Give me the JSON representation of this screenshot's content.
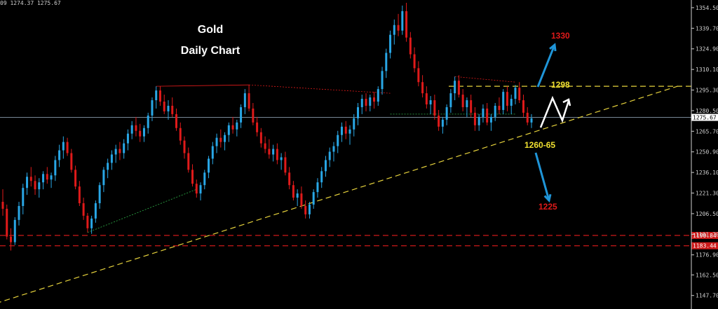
{
  "ohlc_header": "09 1274.37 1275.67",
  "chart_data": {
    "type": "candlestick",
    "title": "Gold",
    "subtitle": "Daily Chart",
    "y_ticks": [
      1354.5,
      1339.7,
      1324.9,
      1310.1,
      1295.3,
      1280.5,
      1265.7,
      1250.9,
      1236.1,
      1221.3,
      1206.5,
      1191.7,
      1176.9,
      1162.5,
      1147.7
    ],
    "ylim": [
      1138,
      1360
    ],
    "current_price": 1275.67,
    "horizontal_levels": [
      1190.84,
      1183.44
    ],
    "resistance_level": 1298,
    "targets": {
      "up_label": "1330",
      "resistance_label": "1298",
      "support_label": "1260-65",
      "down_label": "1225"
    },
    "colors": {
      "up": "#29a7e6",
      "down": "#e01a1a",
      "trend": "#e6d23c",
      "levels": "#cc1a1a",
      "grid_text": "#cfcfcf"
    },
    "candles": [
      [
        1215,
        1224,
        1205,
        1210
      ],
      [
        1210,
        1213,
        1188,
        1190
      ],
      [
        1190,
        1196,
        1180,
        1186
      ],
      [
        1186,
        1204,
        1184,
        1202
      ],
      [
        1202,
        1215,
        1198,
        1212
      ],
      [
        1212,
        1228,
        1206,
        1225
      ],
      [
        1225,
        1236,
        1220,
        1233
      ],
      [
        1233,
        1240,
        1226,
        1230
      ],
      [
        1230,
        1234,
        1220,
        1224
      ],
      [
        1224,
        1232,
        1218,
        1229
      ],
      [
        1229,
        1237,
        1224,
        1235
      ],
      [
        1235,
        1240,
        1228,
        1231
      ],
      [
        1231,
        1236,
        1225,
        1234
      ],
      [
        1234,
        1248,
        1230,
        1245
      ],
      [
        1245,
        1256,
        1240,
        1252
      ],
      [
        1252,
        1262,
        1246,
        1258
      ],
      [
        1258,
        1261,
        1248,
        1250
      ],
      [
        1250,
        1253,
        1236,
        1238
      ],
      [
        1238,
        1241,
        1224,
        1226
      ],
      [
        1226,
        1230,
        1212,
        1214
      ],
      [
        1214,
        1218,
        1202,
        1205
      ],
      [
        1205,
        1207,
        1193,
        1196
      ],
      [
        1196,
        1205,
        1192,
        1203
      ],
      [
        1203,
        1216,
        1200,
        1214
      ],
      [
        1214,
        1229,
        1210,
        1227
      ],
      [
        1227,
        1240,
        1222,
        1238
      ],
      [
        1238,
        1246,
        1232,
        1243
      ],
      [
        1243,
        1252,
        1238,
        1249
      ],
      [
        1249,
        1256,
        1243,
        1253
      ],
      [
        1253,
        1258,
        1245,
        1250
      ],
      [
        1250,
        1260,
        1246,
        1257
      ],
      [
        1257,
        1267,
        1252,
        1264
      ],
      [
        1264,
        1273,
        1260,
        1270
      ],
      [
        1270,
        1276,
        1262,
        1266
      ],
      [
        1266,
        1271,
        1258,
        1262
      ],
      [
        1262,
        1270,
        1258,
        1268
      ],
      [
        1268,
        1279,
        1264,
        1277
      ],
      [
        1277,
        1290,
        1273,
        1288
      ],
      [
        1288,
        1298,
        1282,
        1295
      ],
      [
        1295,
        1298,
        1284,
        1287
      ],
      [
        1287,
        1292,
        1278,
        1280
      ],
      [
        1280,
        1288,
        1274,
        1284
      ],
      [
        1284,
        1290,
        1276,
        1278
      ],
      [
        1278,
        1282,
        1266,
        1268
      ],
      [
        1268,
        1272,
        1256,
        1259
      ],
      [
        1259,
        1262,
        1246,
        1250
      ],
      [
        1250,
        1254,
        1236,
        1238
      ],
      [
        1238,
        1242,
        1226,
        1228
      ],
      [
        1228,
        1231,
        1218,
        1221
      ],
      [
        1221,
        1229,
        1216,
        1227
      ],
      [
        1227,
        1238,
        1224,
        1236
      ],
      [
        1236,
        1248,
        1232,
        1246
      ],
      [
        1246,
        1258,
        1242,
        1255
      ],
      [
        1255,
        1264,
        1250,
        1261
      ],
      [
        1261,
        1267,
        1254,
        1258
      ],
      [
        1258,
        1265,
        1252,
        1263
      ],
      [
        1263,
        1272,
        1258,
        1270
      ],
      [
        1270,
        1276,
        1264,
        1267
      ],
      [
        1267,
        1274,
        1262,
        1272
      ],
      [
        1272,
        1285,
        1268,
        1283
      ],
      [
        1283,
        1296,
        1278,
        1293
      ],
      [
        1293,
        1299,
        1280,
        1282
      ],
      [
        1282,
        1286,
        1270,
        1272
      ],
      [
        1272,
        1276,
        1262,
        1265
      ],
      [
        1265,
        1268,
        1254,
        1257
      ],
      [
        1257,
        1262,
        1250,
        1253
      ],
      [
        1253,
        1260,
        1246,
        1249
      ],
      [
        1249,
        1256,
        1244,
        1253
      ],
      [
        1253,
        1257,
        1242,
        1245
      ],
      [
        1245,
        1250,
        1238,
        1247
      ],
      [
        1247,
        1251,
        1234,
        1236
      ],
      [
        1236,
        1240,
        1224,
        1227
      ],
      [
        1227,
        1230,
        1216,
        1218
      ],
      [
        1218,
        1224,
        1212,
        1221
      ],
      [
        1221,
        1226,
        1210,
        1212
      ],
      [
        1212,
        1216,
        1203,
        1206
      ],
      [
        1206,
        1215,
        1203,
        1213
      ],
      [
        1213,
        1224,
        1210,
        1222
      ],
      [
        1222,
        1232,
        1218,
        1229
      ],
      [
        1229,
        1240,
        1225,
        1237
      ],
      [
        1237,
        1248,
        1233,
        1245
      ],
      [
        1245,
        1254,
        1240,
        1251
      ],
      [
        1251,
        1258,
        1244,
        1255
      ],
      [
        1255,
        1266,
        1250,
        1263
      ],
      [
        1263,
        1272,
        1258,
        1269
      ],
      [
        1269,
        1273,
        1260,
        1264
      ],
      [
        1264,
        1270,
        1256,
        1267
      ],
      [
        1267,
        1278,
        1262,
        1275
      ],
      [
        1275,
        1286,
        1270,
        1283
      ],
      [
        1283,
        1292,
        1278,
        1289
      ],
      [
        1289,
        1293,
        1280,
        1284
      ],
      [
        1284,
        1292,
        1280,
        1290
      ],
      [
        1290,
        1294,
        1282,
        1287
      ],
      [
        1287,
        1298,
        1284,
        1296
      ],
      [
        1296,
        1312,
        1292,
        1309
      ],
      [
        1309,
        1325,
        1304,
        1322
      ],
      [
        1322,
        1338,
        1318,
        1335
      ],
      [
        1335,
        1346,
        1328,
        1342
      ],
      [
        1342,
        1350,
        1334,
        1338
      ],
      [
        1338,
        1356,
        1335,
        1352
      ],
      [
        1352,
        1358,
        1330,
        1333
      ],
      [
        1333,
        1337,
        1318,
        1321
      ],
      [
        1321,
        1326,
        1308,
        1311
      ],
      [
        1311,
        1316,
        1298,
        1301
      ],
      [
        1301,
        1306,
        1290,
        1293
      ],
      [
        1293,
        1298,
        1282,
        1285
      ],
      [
        1285,
        1291,
        1278,
        1288
      ],
      [
        1288,
        1292,
        1274,
        1277
      ],
      [
        1277,
        1281,
        1266,
        1269
      ],
      [
        1269,
        1276,
        1264,
        1274
      ],
      [
        1274,
        1285,
        1270,
        1283
      ],
      [
        1283,
        1296,
        1279,
        1293
      ],
      [
        1293,
        1305,
        1288,
        1302
      ],
      [
        1302,
        1306,
        1290,
        1292
      ],
      [
        1292,
        1296,
        1280,
        1283
      ],
      [
        1283,
        1290,
        1276,
        1288
      ],
      [
        1288,
        1292,
        1276,
        1279
      ],
      [
        1279,
        1283,
        1266,
        1270
      ],
      [
        1270,
        1278,
        1266,
        1276
      ],
      [
        1276,
        1285,
        1272,
        1282
      ],
      [
        1282,
        1286,
        1270,
        1272
      ],
      [
        1272,
        1278,
        1266,
        1276
      ],
      [
        1276,
        1286,
        1273,
        1284
      ],
      [
        1284,
        1290,
        1278,
        1281
      ],
      [
        1281,
        1296,
        1278,
        1294
      ],
      [
        1294,
        1298,
        1280,
        1284
      ],
      [
        1284,
        1292,
        1278,
        1289
      ],
      [
        1289,
        1299,
        1285,
        1297
      ],
      [
        1297,
        1301,
        1286,
        1288
      ],
      [
        1288,
        1292,
        1276,
        1279
      ],
      [
        1279,
        1283,
        1270,
        1272
      ],
      [
        1272,
        1278,
        1268,
        1275
      ]
    ]
  },
  "price_tags": {
    "current": "1275.67",
    "level1": "1190.84",
    "level2": "1183.44"
  }
}
